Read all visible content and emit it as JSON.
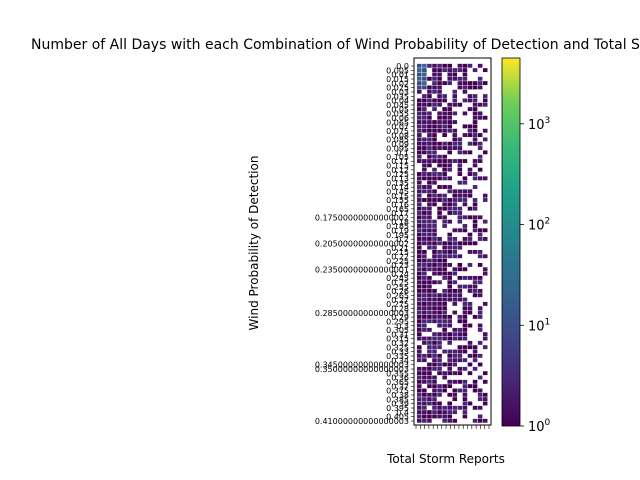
{
  "chart_data": {
    "type": "heatmap",
    "title": "Number of All Days with each Combination of Wind Probability of Detection and Total Storm Reports",
    "xlabel": "Total Storm Reports",
    "ylabel": "Wind Probability of Detection",
    "y_tick_labels": [
      "0.0",
      "0.005",
      "0.01",
      "0.015",
      "0.02",
      "0.025",
      "0.03",
      "0.035",
      "0.04",
      "0.045",
      "0.05",
      "0.055",
      "0.06",
      "0.065",
      "0.07",
      "0.075",
      "0.08",
      "0.085",
      "0.09",
      "0.095",
      "0.1",
      "0.105",
      "0.11",
      "0.115",
      "0.12",
      "0.125",
      "0.13",
      "0.135",
      "0.14",
      "0.145",
      "0.15",
      "0.155",
      "0.16",
      "0.165",
      "0.17",
      "0.17500000000000002",
      "0.18",
      "0.185",
      "0.19",
      "0.195",
      "0.2",
      "0.20500000000000002",
      "0.21",
      "0.215",
      "0.22",
      "0.225",
      "0.23",
      "0.23500000000000001",
      "0.24",
      "0.245",
      "0.25",
      "0.255",
      "0.26",
      "0.265",
      "0.27",
      "0.275",
      "0.28",
      "0.28500000000000003",
      "0.29",
      "0.295",
      "0.3",
      "0.305",
      "0.31",
      "0.315",
      "0.32",
      "0.325",
      "0.33",
      "0.335",
      "0.34",
      "0.34500000000000003",
      "0.35000000000000003",
      "0.355",
      "0.36",
      "0.365",
      "0.37",
      "0.375",
      "0.38",
      "0.385",
      "0.39",
      "0.395",
      "0.4",
      "0.405",
      "0.41000000000000003"
    ],
    "colorbar": {
      "scale": "log",
      "range": [
        1,
        4500
      ],
      "ticks": [
        {
          "value": 1,
          "label": "10^0"
        },
        {
          "value": 10,
          "label": "10^1"
        },
        {
          "value": 100,
          "label": "10^2"
        },
        {
          "value": 1000,
          "label": "10^3"
        }
      ],
      "colormap": "viridis"
    },
    "grid": false,
    "legend": "none"
  }
}
